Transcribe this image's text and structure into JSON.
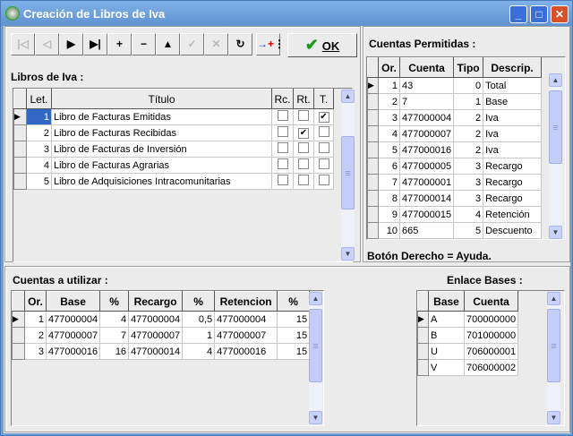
{
  "window": {
    "title": "Creación de Libros de Iva",
    "buttons": [
      "_",
      "□",
      "✕"
    ]
  },
  "toolbar": {
    "buttons": [
      {
        "name": "first-record",
        "glyph": "|◁",
        "enabled": false
      },
      {
        "name": "prior-record",
        "glyph": "◁",
        "enabled": false
      },
      {
        "name": "next-record",
        "glyph": "▶",
        "enabled": true
      },
      {
        "name": "last-record",
        "glyph": "▶|",
        "enabled": true
      },
      {
        "name": "insert-record",
        "glyph": "+",
        "enabled": true
      },
      {
        "name": "delete-record",
        "glyph": "−",
        "enabled": true
      },
      {
        "name": "edit-record",
        "glyph": "▲",
        "enabled": true
      },
      {
        "name": "post-edit",
        "glyph": "✓",
        "enabled": false
      },
      {
        "name": "cancel-edit",
        "glyph": "✕",
        "enabled": false
      },
      {
        "name": "refresh-data",
        "glyph": "↻",
        "enabled": true
      }
    ],
    "ok_label": "OK"
  },
  "libros": {
    "label": "Libros de Iva :",
    "columns": [
      "Let.",
      "Título",
      "Rc.",
      "Rt.",
      "T."
    ],
    "rows": [
      {
        "let": "1",
        "titulo": "Libro de Facturas Emitidas",
        "rc": false,
        "rt": false,
        "t": true
      },
      {
        "let": "2",
        "titulo": "Libro de Facturas Recibidas",
        "rc": false,
        "rt": true,
        "t": false
      },
      {
        "let": "3",
        "titulo": "Libro de Facturas de Inversión",
        "rc": false,
        "rt": false,
        "t": false
      },
      {
        "let": "4",
        "titulo": "Libro de Facturas Agrarias",
        "rc": false,
        "rt": false,
        "t": false
      },
      {
        "let": "5",
        "titulo": "Libro de Adquisiciones Intracomunitarias",
        "rc": false,
        "rt": false,
        "t": false
      }
    ]
  },
  "cuentas_permitidas": {
    "label": "Cuentas Permitidas :",
    "columns": [
      "Or.",
      "Cuenta",
      "Tipo",
      "Descrip."
    ],
    "rows": [
      [
        "1",
        "43",
        "0",
        "Total"
      ],
      [
        "2",
        "7",
        "1",
        "Base"
      ],
      [
        "3",
        "477000004",
        "2",
        "Iva"
      ],
      [
        "4",
        "477000007",
        "2",
        "Iva"
      ],
      [
        "5",
        "477000016",
        "2",
        "Iva"
      ],
      [
        "6",
        "477000005",
        "3",
        "Recargo"
      ],
      [
        "7",
        "477000001",
        "3",
        "Recargo"
      ],
      [
        "8",
        "477000014",
        "3",
        "Recargo"
      ],
      [
        "9",
        "477000015",
        "4",
        "Retención"
      ],
      [
        "10",
        "665",
        "5",
        "Descuento"
      ]
    ],
    "help": "Botón Derecho = Ayuda."
  },
  "cuentas_utilizar": {
    "label": "Cuentas a utilizar :",
    "columns": [
      "Or.",
      "Base",
      "%",
      "Recargo",
      "%",
      "Retencion",
      "%"
    ],
    "rows": [
      [
        "1",
        "477000004",
        "4",
        "477000004",
        "0,5",
        "477000004",
        "15"
      ],
      [
        "2",
        "477000007",
        "7",
        "477000007",
        "1",
        "477000007",
        "15"
      ],
      [
        "3",
        "477000016",
        "16",
        "477000014",
        "4",
        "477000016",
        "15"
      ]
    ]
  },
  "enlace_bases": {
    "label": "Enlace Bases :",
    "columns": [
      "Base",
      "Cuenta"
    ],
    "rows": [
      [
        "A",
        "700000000"
      ],
      [
        "B",
        "701000000"
      ],
      [
        "U",
        "706000001"
      ],
      [
        "V",
        "706000002"
      ]
    ]
  }
}
